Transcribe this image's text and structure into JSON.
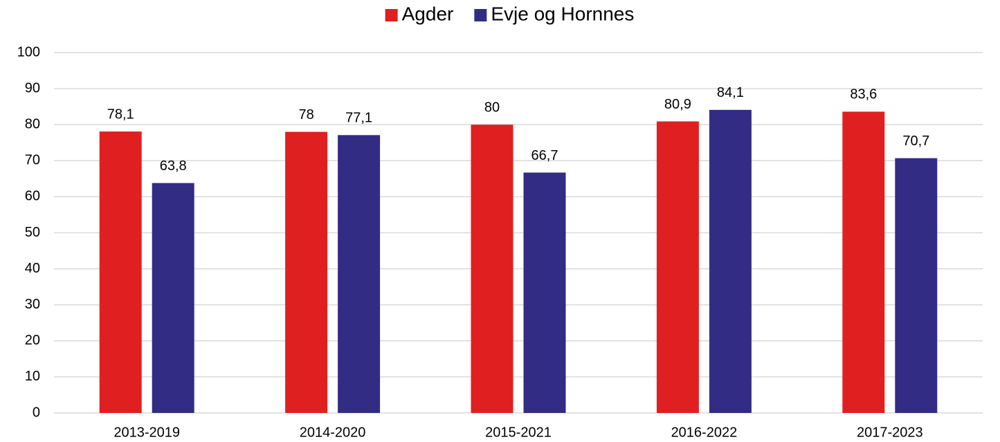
{
  "chart_data": {
    "type": "bar",
    "categories": [
      "2013-2019",
      "2014-2020",
      "2015-2021",
      "2016-2022",
      "2017-2023"
    ],
    "series": [
      {
        "name": "Agder",
        "color": "#e02020",
        "values": [
          78.1,
          78,
          80,
          80.9,
          83.6
        ],
        "value_labels": [
          "78,1",
          "78",
          "80",
          "80,9",
          "83,6"
        ]
      },
      {
        "name": "Evje og Hornnes",
        "color": "#332c85",
        "values": [
          63.8,
          77.1,
          66.7,
          84.1,
          70.7
        ],
        "value_labels": [
          "63,8",
          "77,1",
          "66,7",
          "84,1",
          "70,7"
        ]
      }
    ],
    "ylim": [
      0,
      100
    ],
    "yticks": [
      0,
      10,
      20,
      30,
      40,
      50,
      60,
      70,
      80,
      90,
      100
    ],
    "grid": true,
    "legend": "top"
  }
}
